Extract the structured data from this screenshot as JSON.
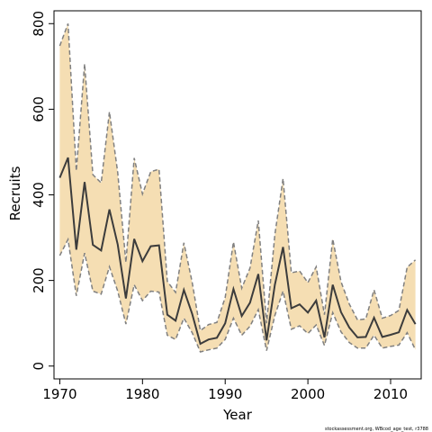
{
  "chart_data": {
    "type": "line",
    "xlabel": "Year",
    "ylabel": "Recruits",
    "xlim": [
      1969.3,
      2013.7
    ],
    "ylim": [
      -30,
      830
    ],
    "xticks": [
      1970,
      1980,
      1990,
      2000,
      2010
    ],
    "yticks": [
      0,
      200,
      400,
      600,
      800
    ],
    "x": [
      1970,
      1971,
      1972,
      1973,
      1974,
      1975,
      1976,
      1977,
      1978,
      1979,
      1980,
      1981,
      1982,
      1983,
      1984,
      1985,
      1986,
      1987,
      1988,
      1989,
      1990,
      1991,
      1992,
      1993,
      1994,
      1995,
      1996,
      1997,
      1998,
      1999,
      2000,
      2001,
      2002,
      2003,
      2004,
      2005,
      2006,
      2007,
      2008,
      2009,
      2010,
      2011,
      2012,
      2013
    ],
    "series": [
      {
        "role": "estimate",
        "values": [
          440,
          487,
          272,
          430,
          283,
          270,
          366,
          284,
          158,
          297,
          245,
          280,
          282,
          120,
          106,
          178,
          122,
          52,
          62,
          66,
          100,
          180,
          117,
          148,
          215,
          60,
          190,
          278,
          135,
          144,
          125,
          153,
          67,
          190,
          126,
          90,
          67,
          68,
          113,
          68,
          73,
          79,
          131,
          98
        ]
      },
      {
        "role": "upper-bound",
        "values": [
          748,
          800,
          456,
          706,
          447,
          428,
          594,
          452,
          242,
          486,
          402,
          454,
          460,
          198,
          172,
          288,
          196,
          83,
          97,
          102,
          160,
          290,
          182,
          229,
          340,
          100,
          307,
          438,
          218,
          222,
          195,
          232,
          120,
          297,
          197,
          145,
          108,
          110,
          178,
          112,
          118,
          130,
          231,
          248
        ]
      },
      {
        "role": "lower-bound",
        "values": [
          258,
          296,
          164,
          264,
          175,
          168,
          232,
          175,
          98,
          190,
          153,
          175,
          173,
          72,
          62,
          112,
          78,
          33,
          38,
          42,
          62,
          112,
          72,
          93,
          132,
          36,
          118,
          175,
          86,
          94,
          76,
          96,
          48,
          125,
          80,
          55,
          42,
          42,
          72,
          42,
          46,
          49,
          78,
          38
        ]
      }
    ],
    "colors": {
      "band_fill": "#f5deb3",
      "band_edge": "#808080",
      "line": "#3c3c3c",
      "axis": "#000000"
    },
    "caption": "stockassessment.org, WBcod_age_test, r3788",
    "grid": false,
    "legend": "none"
  }
}
